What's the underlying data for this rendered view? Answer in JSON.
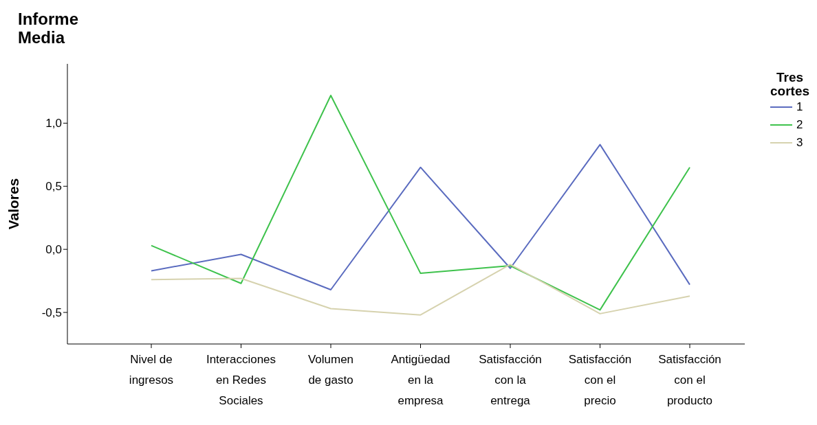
{
  "chart_data": {
    "type": "line",
    "title": "Informe",
    "subtitle": "Media",
    "ylabel": "Valores",
    "legend_title": "Tres cortes",
    "legend": "top right",
    "grid": false,
    "marker": "none",
    "line_style": "solid",
    "categories": [
      "Nivel de ingresos",
      "Interacciones en Redes Sociales",
      "Volumen de gasto",
      "Antigüedad en la empresa",
      "Satisfacción con la entrega",
      "Satisfacción con el precio",
      "Satisfacción con el producto"
    ],
    "ylim": [
      -0.75,
      1.47
    ],
    "yticks": [
      {
        "value": -0.5,
        "label": "-0,5"
      },
      {
        "value": 0,
        "label": "0,0"
      },
      {
        "value": 0.5,
        "label": "0,5"
      },
      {
        "value": 1,
        "label": "1,0"
      }
    ],
    "series": [
      {
        "name": "1",
        "color": "#5a6bbf",
        "values": [
          -0.17,
          -0.04,
          -0.32,
          0.65,
          -0.15,
          0.83,
          -0.28
        ]
      },
      {
        "name": "2",
        "color": "#3ec24c",
        "values": [
          0.03,
          -0.27,
          1.22,
          -0.19,
          -0.13,
          -0.48,
          0.65
        ]
      },
      {
        "name": "3",
        "color": "#d6d2ae",
        "values": [
          -0.24,
          -0.23,
          -0.47,
          -0.52,
          -0.12,
          -0.51,
          -0.37
        ]
      }
    ]
  }
}
